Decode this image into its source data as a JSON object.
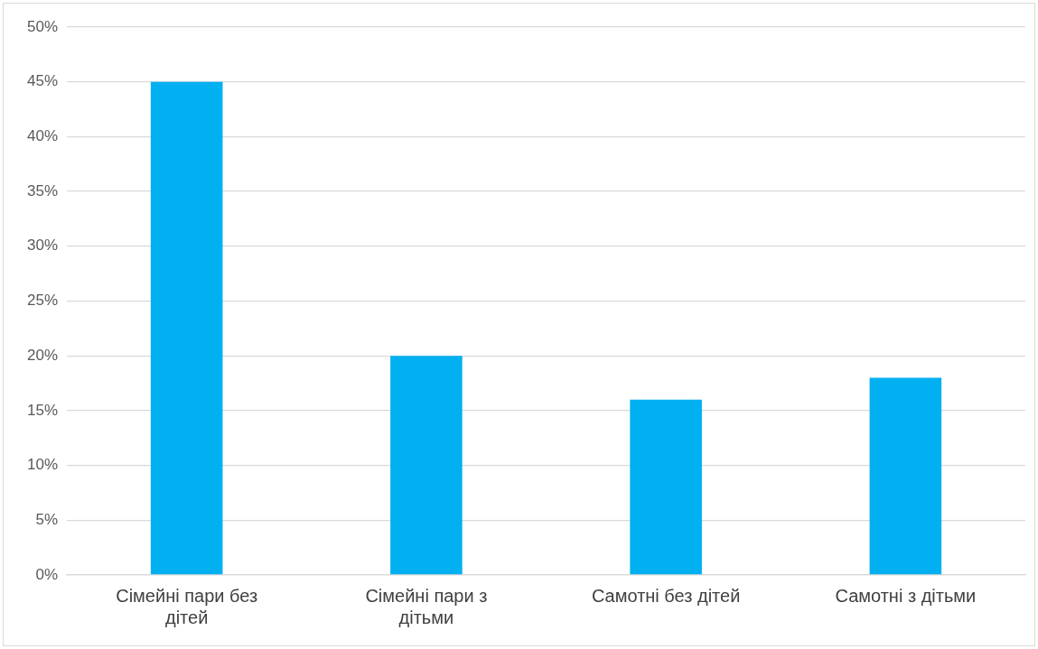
{
  "chart_data": {
    "type": "bar",
    "categories": [
      "Сімейні пари без дітей",
      "Сімейні пари з дітьми",
      "Самотні без дітей",
      "Самотні з дітьми"
    ],
    "values": [
      45,
      20,
      16,
      18
    ],
    "color": "#00b0f0",
    "ylim": [
      0,
      50
    ],
    "yticks": [
      {
        "value": 0,
        "label": "0%"
      },
      {
        "value": 5,
        "label": "5%"
      },
      {
        "value": 10,
        "label": "10%"
      },
      {
        "value": 15,
        "label": "15%"
      },
      {
        "value": 20,
        "label": "20%"
      },
      {
        "value": 25,
        "label": "25%"
      },
      {
        "value": 30,
        "label": "30%"
      },
      {
        "value": 35,
        "label": "35%"
      },
      {
        "value": 40,
        "label": "40%"
      },
      {
        "value": 45,
        "label": "45%"
      },
      {
        "value": 50,
        "label": "50%"
      }
    ],
    "grid": "y",
    "legend": false
  }
}
